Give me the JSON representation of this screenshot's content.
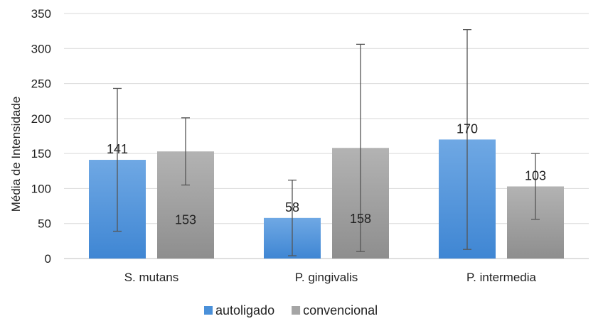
{
  "chart_data": {
    "type": "bar",
    "ylabel": "Média de Intensidade",
    "ylim": [
      0,
      350
    ],
    "yticks": [
      0,
      50,
      100,
      150,
      200,
      250,
      300,
      350
    ],
    "grid": true,
    "legend_position": "bottom",
    "categories": [
      "S. mutans",
      "P. gingivalis",
      "P. intermedia"
    ],
    "series": [
      {
        "name": "autoligado",
        "color": "#4a90d9",
        "values": [
          141,
          58,
          170
        ],
        "labels": [
          "141",
          "58",
          "170"
        ],
        "error_low": [
          39,
          4,
          13
        ],
        "error_high": [
          243,
          112,
          327
        ]
      },
      {
        "name": "convencional",
        "color": "#a5a5a5",
        "values": [
          153,
          158,
          103
        ],
        "labels": [
          "153",
          "158",
          "103"
        ],
        "error_low": [
          105,
          10,
          56
        ],
        "error_high": [
          201,
          306,
          150
        ]
      }
    ]
  }
}
